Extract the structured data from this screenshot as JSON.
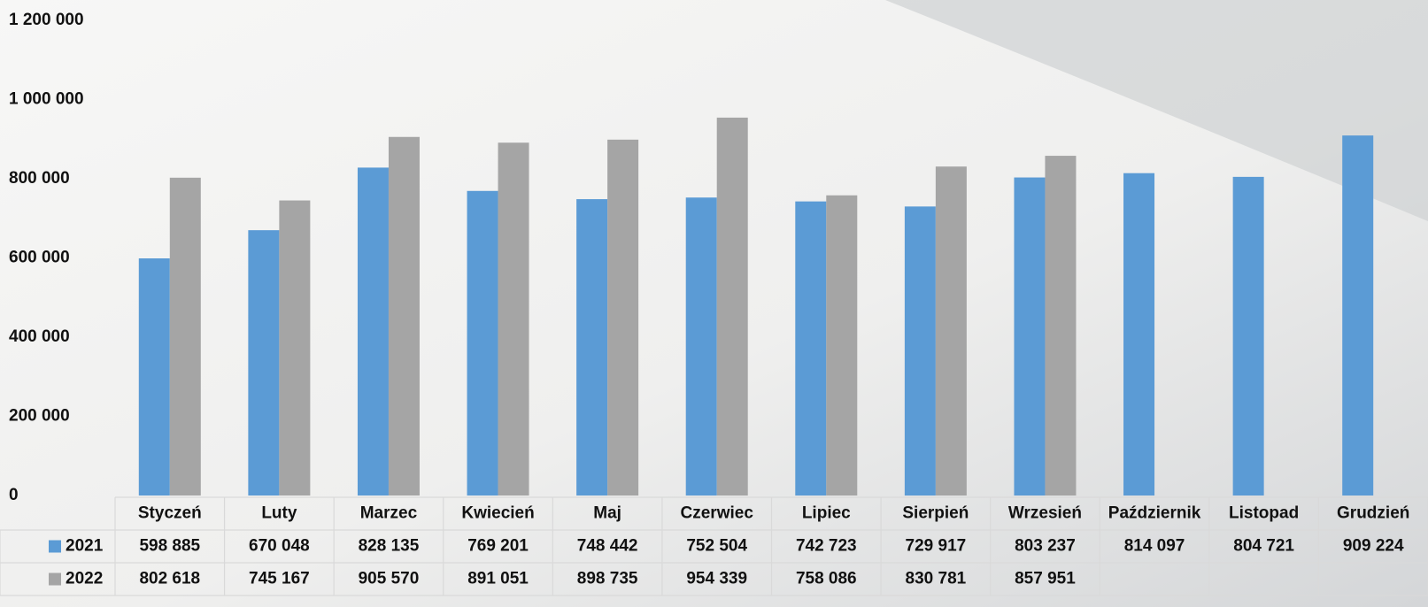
{
  "chart_data": {
    "type": "bar",
    "categories": [
      "Styczeń",
      "Luty",
      "Marzec",
      "Kwiecień",
      "Maj",
      "Czerwiec",
      "Lipiec",
      "Sierpień",
      "Wrzesień",
      "Październik",
      "Listopad",
      "Grudzień"
    ],
    "series": [
      {
        "name": "2021",
        "color": "#5b9bd5",
        "values": [
          598885,
          670048,
          828135,
          769201,
          748442,
          752504,
          742723,
          729917,
          803237,
          814097,
          804721,
          909224
        ],
        "value_labels": [
          "598 885",
          "670 048",
          "828 135",
          "769 201",
          "748 442",
          "752 504",
          "742 723",
          "729 917",
          "803 237",
          "814 097",
          "804 721",
          "909 224"
        ]
      },
      {
        "name": "2022",
        "color": "#a5a5a5",
        "values": [
          802618,
          745167,
          905570,
          891051,
          898735,
          954339,
          758086,
          830781,
          857951,
          null,
          null,
          null
        ],
        "value_labels": [
          "802 618",
          "745 167",
          "905 570",
          "891 051",
          "898 735",
          "954 339",
          "758 086",
          "830 781",
          "857 951",
          null,
          null,
          null
        ]
      }
    ],
    "ylim": [
      0,
      1200000
    ],
    "yticks": [
      0,
      {
        "value": 200000,
        "label": "200 000"
      },
      {
        "value": 400000,
        "label": "400 000"
      },
      {
        "value": 600000,
        "label": "600 000"
      },
      {
        "value": 800000,
        "label": "800 000"
      },
      {
        "value": 1000000,
        "label": "1 000 000"
      },
      {
        "value": 1200000,
        "label": "1 200 000"
      }
    ],
    "grid": false,
    "data_table": true
  }
}
